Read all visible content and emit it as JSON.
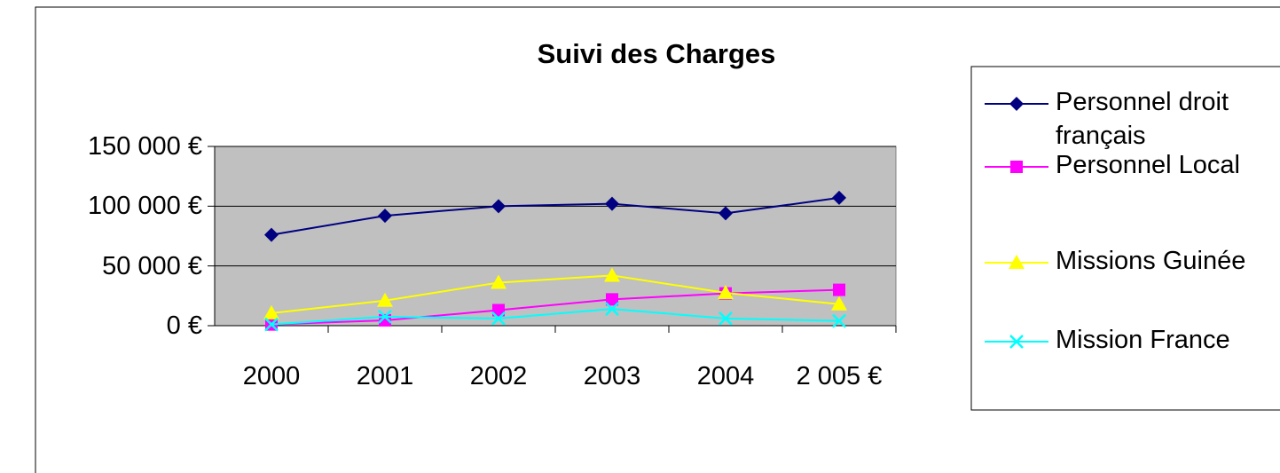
{
  "chart_data": {
    "type": "line",
    "title": "Suivi des Charges",
    "categories": [
      "2000",
      "2001",
      "2002",
      "2003",
      "2004",
      "2 005 €"
    ],
    "series": [
      {
        "name": "Personnel droit français",
        "color": "#000080",
        "marker": "diamond",
        "values": [
          76000,
          92000,
          100000,
          102000,
          94000,
          107000
        ]
      },
      {
        "name": "Personnel Local",
        "color": "#ff00ff",
        "marker": "square",
        "values": [
          1000,
          4500,
          13000,
          22000,
          27000,
          30000
        ]
      },
      {
        "name": "Missions Guinée",
        "color": "#ffff00",
        "marker": "triangle",
        "values": [
          10500,
          21000,
          36000,
          42000,
          27500,
          18000
        ]
      },
      {
        "name": "Mission France",
        "color": "#00ffff",
        "marker": "x",
        "values": [
          1000,
          7500,
          6000,
          14000,
          6000,
          4000
        ]
      }
    ],
    "ylim": [
      0,
      150000
    ],
    "yticks": [
      {
        "value": 0,
        "label": "0 €"
      },
      {
        "value": 50000,
        "label": "50 000 €"
      },
      {
        "value": 100000,
        "label": "100 000 €"
      },
      {
        "value": 150000,
        "label": "150 000 €"
      }
    ],
    "grid": true,
    "plot_background": "#c0c0c0",
    "legend": "right"
  }
}
